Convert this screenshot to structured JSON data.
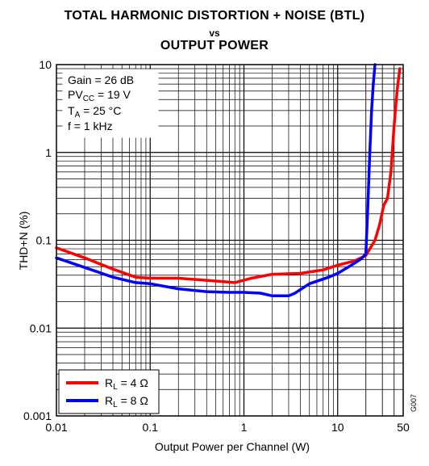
{
  "chart_data": {
    "type": "line",
    "title_line1": "TOTAL HARMONIC DISTORTION + NOISE (BTL)",
    "title_line2": "vs",
    "title_line3": "OUTPUT POWER",
    "xlabel": "Output Power per Channel (W)",
    "ylabel": "THD+N (%)",
    "xscale": "log",
    "yscale": "log",
    "xlim": [
      0.01,
      50
    ],
    "ylim": [
      0.001,
      10
    ],
    "x_ticks": [
      "0.01",
      "0.1",
      "1",
      "10",
      "50"
    ],
    "x_tick_values": [
      0.01,
      0.1,
      1,
      10,
      50
    ],
    "y_ticks": [
      "10",
      "1",
      "0.1",
      "0.01",
      "0.001"
    ],
    "y_tick_values": [
      10,
      1,
      0.1,
      0.01,
      0.001
    ],
    "grid": true,
    "legend_position": "bottom-left",
    "conditions": {
      "gain": "Gain = 26 dB",
      "pvcc_main": "PV",
      "pvcc_sub": "CC",
      "pvcc_rest": " = 19 V",
      "ta_main": "T",
      "ta_sub": "A",
      "ta_rest": " = 25 °C",
      "freq": "f = 1 kHz"
    },
    "figure_code": "G007",
    "series": [
      {
        "legend_main": "R",
        "legend_sub": "L",
        "legend_rest": " = 4 Ω",
        "color": "#ff0000",
        "x": [
          0.01,
          0.02,
          0.04,
          0.07,
          0.1,
          0.2,
          0.4,
          0.8,
          1.2,
          2,
          4,
          7,
          10,
          15,
          20,
          25,
          28,
          31,
          34,
          37,
          40,
          43,
          46
        ],
        "y": [
          0.082,
          0.063,
          0.047,
          0.038,
          0.037,
          0.037,
          0.035,
          0.033,
          0.037,
          0.041,
          0.042,
          0.046,
          0.052,
          0.058,
          0.067,
          0.1,
          0.15,
          0.25,
          0.3,
          0.6,
          2,
          5,
          9
        ]
      },
      {
        "legend_main": "R",
        "legend_sub": "L",
        "legend_rest": " = 8 Ω",
        "color": "#0000ff",
        "x": [
          0.01,
          0.02,
          0.04,
          0.07,
          0.1,
          0.2,
          0.4,
          0.7,
          1,
          1.5,
          2,
          3,
          3.5,
          5,
          8,
          10,
          14,
          18,
          20,
          21,
          22,
          23,
          24,
          25
        ],
        "y": [
          0.063,
          0.049,
          0.038,
          0.033,
          0.032,
          0.028,
          0.026,
          0.0255,
          0.0255,
          0.025,
          0.0233,
          0.0233,
          0.025,
          0.032,
          0.038,
          0.042,
          0.052,
          0.062,
          0.07,
          0.25,
          1,
          3,
          6,
          10
        ]
      }
    ]
  }
}
